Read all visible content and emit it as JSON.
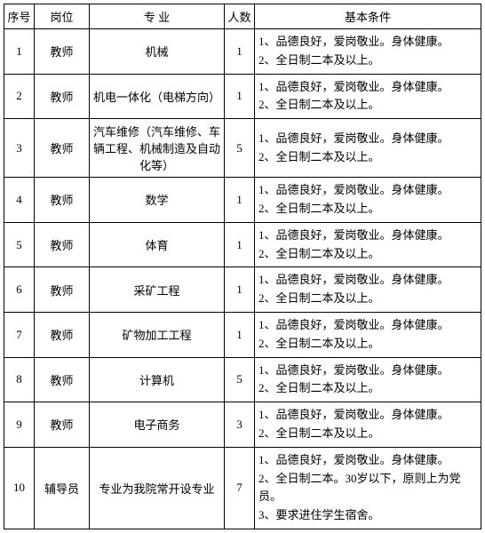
{
  "headers": {
    "seq": "序号",
    "position": "岗位",
    "major": "专 业",
    "count": "人数",
    "condition": "基本条件"
  },
  "rows": [
    {
      "seq": "1",
      "position": "教师",
      "major": "机械",
      "count": "1",
      "conditions": [
        "1、品德良好，爱岗敬业。身体健康。",
        "2、全日制二本及以上。"
      ]
    },
    {
      "seq": "2",
      "position": "教师",
      "major": "机电一体化（电梯方向）",
      "count": "1",
      "conditions": [
        "1、品德良好，爱岗敬业。身体健康。",
        "2、全日制二本及以上。"
      ]
    },
    {
      "seq": "3",
      "position": "教师",
      "major": "汽车维修（汽车维修、车辆工程、机械制造及自动化等）",
      "count": "5",
      "conditions": [
        "1、品德良好，爱岗敬业。身体健康。",
        "2、全日制二本及以上。"
      ]
    },
    {
      "seq": "4",
      "position": "教师",
      "major": "数学",
      "count": "1",
      "conditions": [
        "1、品德良好，爱岗敬业。身体健康。",
        "2、全日制二本及以上。"
      ]
    },
    {
      "seq": "5",
      "position": "教师",
      "major": "体育",
      "count": "1",
      "conditions": [
        "1、品德良好，爱岗敬业。身体健康。",
        "2、全日制二本及以上。"
      ]
    },
    {
      "seq": "6",
      "position": "教师",
      "major": "采矿工程",
      "count": "1",
      "conditions": [
        "1、品德良好，爱岗敬业。身体健康。",
        "2、全日制二本及以上。"
      ]
    },
    {
      "seq": "7",
      "position": "教师",
      "major": "矿物加工工程",
      "count": "1",
      "conditions": [
        "1、品德良好，爱岗敬业。身体健康。",
        "2、全日制二本及以上。"
      ]
    },
    {
      "seq": "8",
      "position": "教师",
      "major": "计算机",
      "count": "5",
      "conditions": [
        "1、品德良好，爱岗敬业。身体健康。",
        "2、全日制二本及以上。"
      ]
    },
    {
      "seq": "9",
      "position": "教师",
      "major": "电子商务",
      "count": "3",
      "conditions": [
        "1、品德良好，爱岗敬业。身体健康。",
        "2、全日制二本及以上。"
      ]
    },
    {
      "seq": "10",
      "position": "辅导员",
      "major": "专业为我院常开设专业",
      "count": "7",
      "conditions": [
        "1、品德良好，爱岗敬业。身体健康。",
        "2、全日制二本。30岁以下，原则上为党员。",
        "3、要求进住学生宿舍。"
      ]
    }
  ]
}
